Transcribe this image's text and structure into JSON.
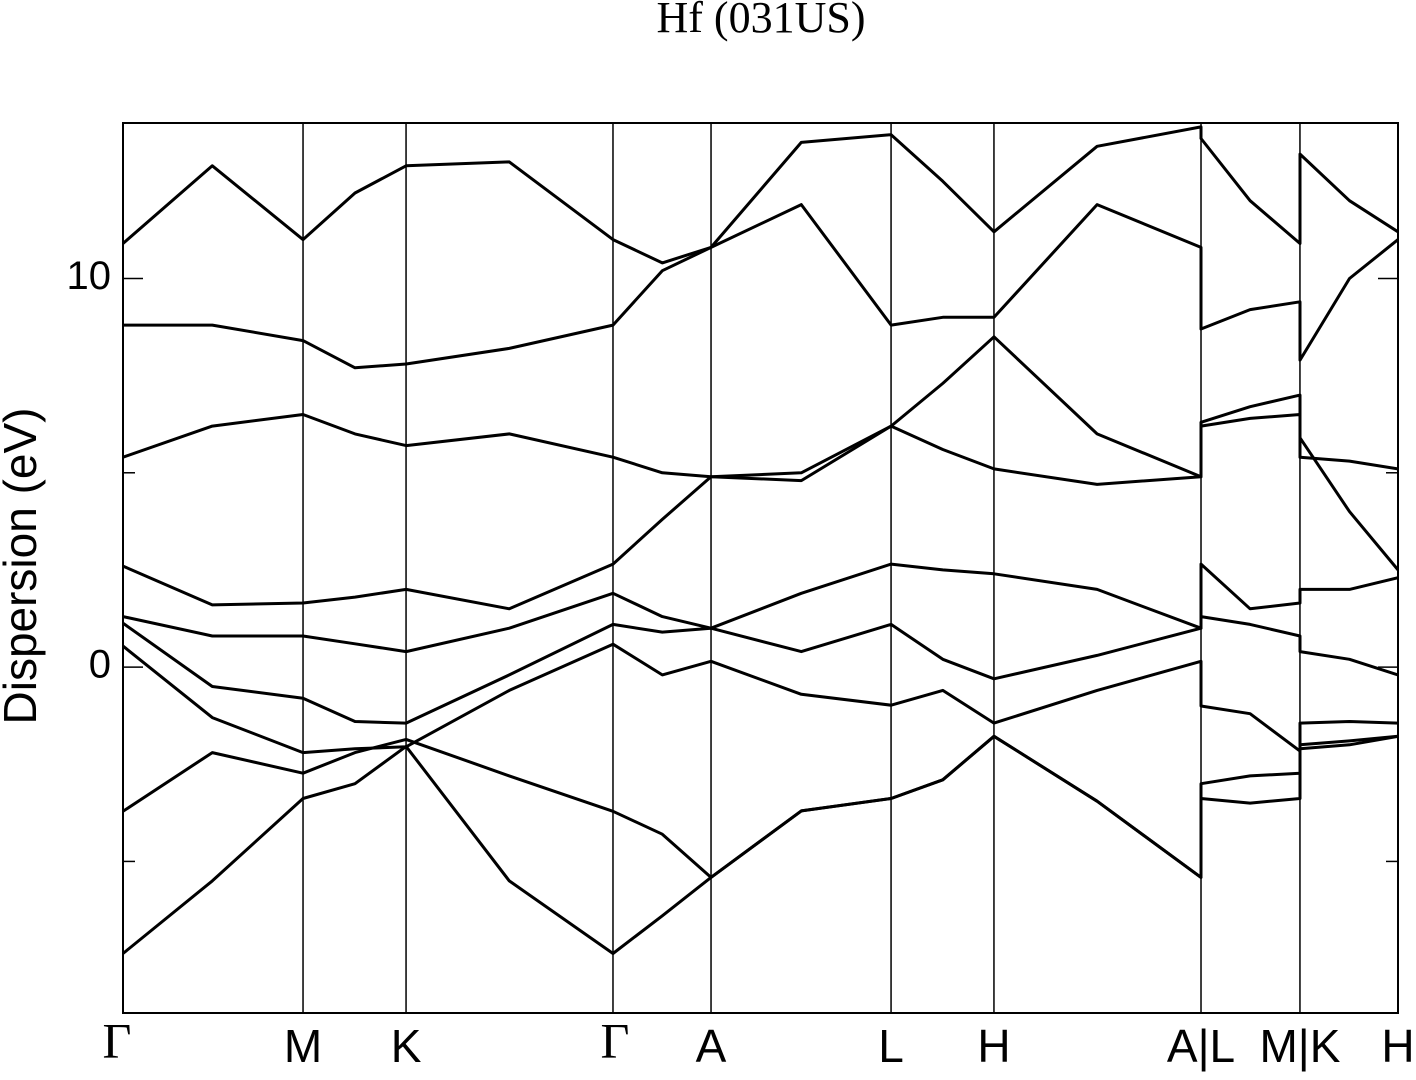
{
  "chart_data": {
    "type": "line",
    "title": "Hf (031US)",
    "y_label": "Dispersion (eV)",
    "color": "#000000",
    "xlim": [
      0,
      10
    ],
    "ylim": [
      -8.9,
      14
    ],
    "xticks": [
      {
        "value": 0,
        "label": "Γ"
      },
      {
        "value": 1.412,
        "label": "M"
      },
      {
        "value": 2.22,
        "label": "K"
      },
      {
        "value": 3.843,
        "label": "Γ"
      },
      {
        "value": 4.612,
        "label": "A"
      },
      {
        "value": 6.024,
        "label": "L"
      },
      {
        "value": 6.831,
        "label": "H"
      },
      {
        "value": 8.455,
        "label": "A|L"
      },
      {
        "value": 9.231,
        "label": "M|K"
      },
      {
        "value": 10,
        "label": "H"
      }
    ],
    "yticks": [
      0,
      10
    ],
    "yminor_ticks": [
      -5,
      5
    ],
    "x": [
      0,
      0.7,
      1.412,
      1.82,
      2.22,
      3.03,
      3.843,
      4.23,
      4.612,
      5.32,
      6.024,
      6.43,
      6.831,
      7.64,
      8.455,
      8.455,
      8.84,
      9.231,
      9.231,
      9.62,
      10
    ],
    "series": [
      {
        "values": [
          -7.37,
          -5.5,
          -3.38,
          -3.0,
          -2.04,
          -5.5,
          -7.37,
          -6.4,
          -5.41,
          -3.7,
          -3.38,
          -2.9,
          -1.78,
          -3.45,
          -5.41,
          -3.38,
          -3.5,
          -3.38,
          -2.1,
          -2.0,
          -1.78
        ]
      },
      {
        "values": [
          -3.71,
          -2.2,
          -2.73,
          -2.2,
          -1.86,
          -2.8,
          -3.71,
          -4.3,
          -5.41,
          -3.7,
          -3.38,
          -2.9,
          -1.78,
          -3.45,
          -5.41,
          -3.0,
          -2.8,
          -2.73,
          -2.0,
          -1.9,
          -1.78
        ]
      },
      {
        "values": [
          0.54,
          -1.3,
          -2.2,
          -2.1,
          -2.05,
          -0.6,
          0.59,
          -0.2,
          0.15,
          -0.7,
          -0.98,
          -0.6,
          -1.44,
          -0.6,
          0.15,
          -1.0,
          -1.2,
          -2.16,
          -1.44,
          -1.4,
          -1.44
        ]
      },
      {
        "values": [
          1.13,
          -0.5,
          -0.8,
          -1.4,
          -1.44,
          -0.2,
          1.1,
          0.9,
          1.0,
          0.4,
          1.1,
          0.2,
          -0.3,
          0.3,
          1.0,
          1.3,
          1.1,
          0.8,
          0.4,
          0.2,
          -0.2
        ]
      },
      {
        "values": [
          1.3,
          0.8,
          0.8,
          0.6,
          0.4,
          1.0,
          1.9,
          1.3,
          1.0,
          1.9,
          2.65,
          2.5,
          2.4,
          2.0,
          1.0,
          2.65,
          1.5,
          1.65,
          2.0,
          2.0,
          2.3
        ]
      },
      {
        "values": [
          2.6,
          1.6,
          1.65,
          1.8,
          2.0,
          1.5,
          2.65,
          3.8,
          4.9,
          5.0,
          6.2,
          5.6,
          5.1,
          4.7,
          4.9,
          6.2,
          6.4,
          6.5,
          5.9,
          4.0,
          2.5
        ]
      },
      {
        "values": [
          5.4,
          6.2,
          6.5,
          6.0,
          5.7,
          6.0,
          5.4,
          5.0,
          4.9,
          4.8,
          6.2,
          7.3,
          8.5,
          6.0,
          4.9,
          6.3,
          6.7,
          7.0,
          5.4,
          5.3,
          5.1
        ]
      },
      {
        "values": [
          8.8,
          8.8,
          8.4,
          7.7,
          7.8,
          8.2,
          8.8,
          10.2,
          10.8,
          11.9,
          8.8,
          9.0,
          9.0,
          11.9,
          10.8,
          8.7,
          9.2,
          9.4,
          7.9,
          10.0,
          11.0
        ]
      },
      {
        "values": [
          10.9,
          12.9,
          11.0,
          12.2,
          12.9,
          13.0,
          11.0,
          10.4,
          10.8,
          13.5,
          13.7,
          12.5,
          11.2,
          13.4,
          13.9,
          13.6,
          12.0,
          10.9,
          13.2,
          12.0,
          11.2
        ]
      }
    ]
  }
}
